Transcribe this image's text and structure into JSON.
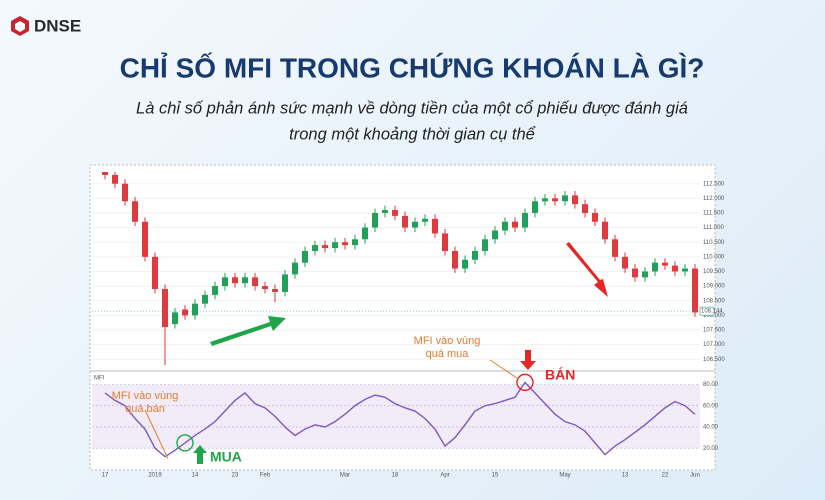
{
  "header": {
    "brand": "DNSE",
    "title": "CHỈ SỐ MFI TRONG CHỨNG KHOÁN LÀ GÌ?",
    "subtitle": [
      "Là chỉ số phản ánh sức mạnh về dòng tiền của một cổ phiếu được đánh giá",
      "trong một khoảng thời gian cụ thể"
    ]
  },
  "chart_data": [
    {
      "type": "candlestick",
      "categories": [
        "17",
        null,
        null,
        null,
        null,
        "2019",
        null,
        null,
        null,
        "14",
        null,
        null,
        null,
        "23",
        null,
        null,
        "Feb",
        null,
        null,
        null,
        null,
        null,
        null,
        null,
        "Mar",
        null,
        null,
        null,
        null,
        "18",
        null,
        null,
        null,
        null,
        "Apr",
        null,
        null,
        null,
        null,
        "15",
        null,
        null,
        null,
        null,
        null,
        null,
        "May",
        null,
        null,
        null,
        null,
        null,
        "13",
        null,
        null,
        null,
        "22",
        null,
        null,
        "Jun"
      ],
      "open": [
        112.9,
        112.8,
        112.5,
        111.9,
        111.2,
        110.0,
        108.9,
        107.7,
        108.2,
        108.0,
        108.4,
        108.7,
        109.0,
        109.3,
        109.1,
        109.3,
        109.0,
        108.9,
        108.8,
        109.4,
        109.8,
        110.2,
        110.4,
        110.3,
        110.5,
        110.4,
        110.6,
        111.0,
        111.5,
        111.6,
        111.4,
        111.0,
        111.2,
        111.3,
        110.8,
        110.2,
        109.6,
        109.9,
        110.2,
        110.6,
        110.9,
        111.2,
        111.0,
        111.5,
        111.9,
        112.0,
        111.9,
        112.1,
        111.8,
        111.5,
        111.2,
        110.6,
        110.0,
        109.6,
        109.3,
        109.5,
        109.8,
        109.7,
        109.5,
        109.6
      ],
      "high": [
        112.9,
        112.9,
        112.65,
        112.05,
        111.35,
        110.15,
        109.05,
        108.25,
        108.35,
        108.55,
        108.85,
        109.15,
        109.45,
        109.45,
        109.45,
        109.45,
        109.15,
        109.05,
        109.55,
        109.95,
        110.35,
        110.55,
        110.55,
        110.65,
        110.65,
        110.75,
        111.15,
        111.65,
        111.75,
        111.75,
        111.55,
        111.35,
        111.45,
        111.45,
        110.95,
        110.35,
        110.05,
        110.35,
        110.75,
        111.05,
        111.35,
        111.35,
        111.65,
        112.05,
        112.15,
        112.15,
        112.25,
        112.25,
        111.95,
        111.65,
        111.35,
        110.75,
        110.15,
        109.75,
        109.65,
        109.95,
        109.95,
        109.85,
        109.75,
        109.75
      ],
      "low": [
        112.65,
        112.35,
        111.75,
        111.05,
        109.85,
        108.75,
        106.3,
        107.55,
        107.85,
        107.85,
        108.25,
        108.55,
        108.85,
        108.95,
        108.95,
        108.85,
        108.75,
        108.45,
        108.65,
        109.25,
        109.65,
        110.05,
        110.15,
        110.15,
        110.25,
        110.25,
        110.45,
        110.85,
        111.35,
        111.25,
        110.85,
        110.85,
        111.05,
        110.65,
        110.05,
        109.45,
        109.45,
        109.75,
        110.05,
        110.45,
        110.75,
        110.85,
        110.85,
        111.35,
        111.75,
        111.75,
        111.75,
        111.65,
        111.35,
        111.05,
        110.45,
        109.85,
        109.45,
        109.15,
        109.15,
        109.35,
        109.55,
        109.35,
        109.35,
        107.95
      ],
      "close": [
        112.8,
        112.5,
        111.9,
        111.2,
        110.0,
        108.9,
        107.6,
        108.1,
        108.0,
        108.4,
        108.7,
        109.0,
        109.3,
        109.1,
        109.3,
        109.0,
        108.9,
        108.8,
        109.4,
        109.8,
        110.2,
        110.4,
        110.3,
        110.5,
        110.4,
        110.6,
        111.0,
        111.5,
        111.6,
        111.4,
        111.0,
        111.2,
        111.3,
        110.8,
        110.2,
        109.6,
        109.9,
        110.2,
        110.6,
        110.9,
        111.2,
        111.0,
        111.5,
        111.9,
        112.0,
        111.9,
        112.1,
        111.8,
        111.5,
        111.2,
        110.6,
        110.0,
        109.6,
        109.3,
        109.5,
        109.8,
        109.7,
        109.5,
        109.6,
        108.1
      ],
      "last_price": 108.144,
      "up_color": "#22a05a",
      "down_color": "#e0393e",
      "ylim": [
        106.2,
        112.9
      ],
      "yticks": [
        {
          "value": 106.5,
          "label": "106.500"
        },
        {
          "value": 107,
          "label": "107.000"
        },
        {
          "value": 107.5,
          "label": "107.500"
        },
        {
          "value": 108,
          "label": "108.000"
        },
        {
          "value": 108.5,
          "label": "108.500"
        },
        {
          "value": 109,
          "label": "109.000"
        },
        {
          "value": 109.5,
          "label": "109.500"
        },
        {
          "value": 110,
          "label": "110.000"
        },
        {
          "value": 110.5,
          "label": "110.500"
        },
        {
          "value": 111,
          "label": "111.000"
        },
        {
          "value": 111.5,
          "label": "111.500"
        },
        {
          "value": 112,
          "label": "112.000"
        },
        {
          "value": 112.5,
          "label": "112.500"
        }
      ]
    },
    {
      "type": "line",
      "series": [
        {
          "name": "MFI",
          "color": "#7e57c2",
          "values": [
            72,
            65,
            60,
            48,
            38,
            20,
            12,
            18,
            25,
            32,
            38,
            45,
            55,
            65,
            72,
            62,
            58,
            50,
            40,
            32,
            38,
            42,
            40,
            45,
            52,
            60,
            66,
            70,
            68,
            62,
            58,
            55,
            48,
            38,
            22,
            30,
            42,
            55,
            60,
            62,
            65,
            68,
            82,
            72,
            62,
            52,
            45,
            42,
            36,
            25,
            14,
            22,
            28,
            35,
            42,
            50,
            58,
            64,
            60,
            52
          ]
        }
      ],
      "ylim": [
        7,
        88
      ],
      "yticks": [
        {
          "value": 20,
          "label": "20.00"
        },
        {
          "value": 40,
          "label": "40.00"
        },
        {
          "value": 60,
          "label": "60.00"
        },
        {
          "value": 80,
          "label": "80.00"
        }
      ],
      "annotations": [
        [
          "MFI vào vùng",
          "quá bán"
        ],
        [
          "MFI vào vùng",
          "quá mua"
        ]
      ],
      "signals": [
        "MUA",
        "BÁN"
      ]
    }
  ]
}
